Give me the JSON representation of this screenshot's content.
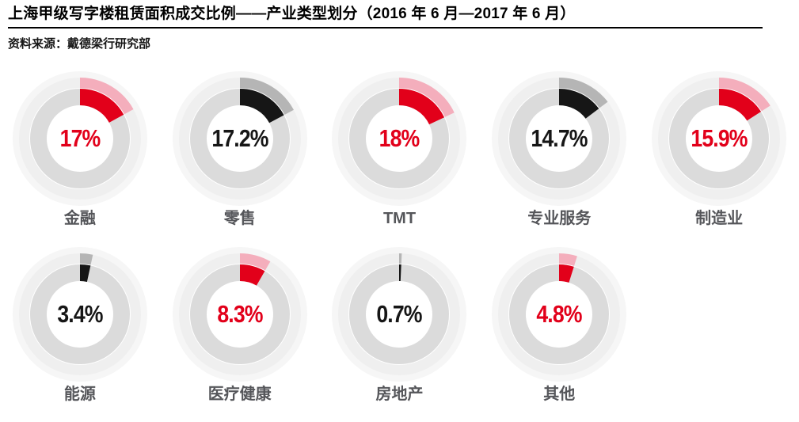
{
  "header": {
    "title": "上海甲级写字楼租赁面积成交比例——产业类型划分（2016 年 6 月—2017 年 6 月）",
    "source": "资料来源：戴德梁行研究部"
  },
  "colors": {
    "title_text": "#000000",
    "source_text": "#161616",
    "label_text": "#55565a",
    "red": "#e2001a",
    "red_echo": "#f4aebc",
    "black": "#161616",
    "black_echo": "#b5b5b5",
    "inner_track": "#dbdbdb",
    "outer_track": "#efefef",
    "halo": "#f6f6f6"
  },
  "chart_data": {
    "type": "pie",
    "variant": "donut-gauge-grid",
    "title": "上海甲级写字楼租赁面积成交比例——产业类型划分（2016 年 6 月—2017 年 6 月）",
    "source": "资料来源：戴德梁行研究部",
    "unit": "%",
    "legend_position": "none",
    "grid_layout": {
      "columns": 5,
      "row1_count": 5,
      "row2_count": 4
    },
    "start_angle_deg": 0,
    "direction": "clockwise",
    "ring_style": "inner strong arc + lighter outer echo arc of same value, labels centered",
    "categories": [
      "金融",
      "零售",
      "TMT",
      "专业服务",
      "制造业",
      "能源",
      "医疗健康",
      "房地产",
      "其他"
    ],
    "values": [
      17,
      17.2,
      18,
      14.7,
      15.9,
      3.4,
      8.3,
      0.7,
      4.8
    ],
    "display_values": [
      "17%",
      "17.2%",
      "18%",
      "14.7%",
      "15.9%",
      "3.4%",
      "8.3%",
      "0.7%",
      "4.8%"
    ],
    "themes": [
      "red",
      "black",
      "red",
      "black",
      "red",
      "black",
      "red",
      "black",
      "red"
    ]
  }
}
